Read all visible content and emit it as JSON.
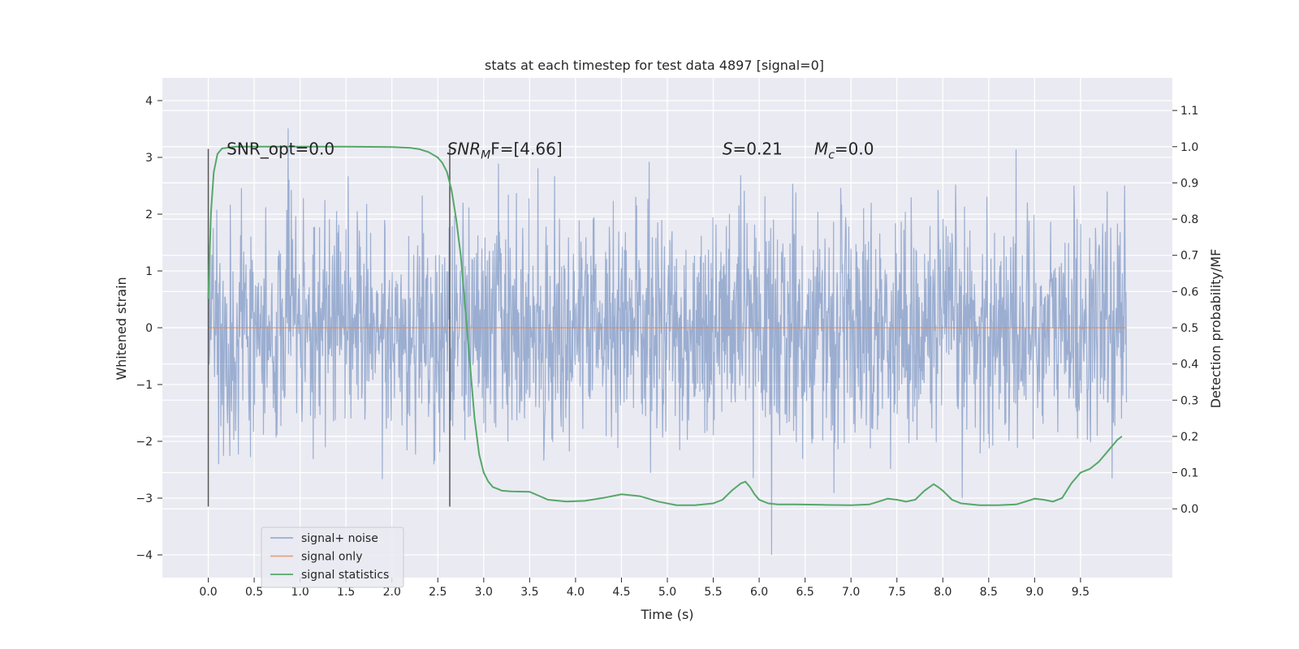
{
  "chart_data": {
    "type": "line",
    "title": "stats at each timestep for test data 4897 [signal=0]",
    "xlabel": "Time (s)",
    "ylabel": "Whitened strain",
    "y2label": "Detection probability/MF",
    "xlim": [
      -0.5,
      10.5
    ],
    "ylim": [
      -4.4,
      4.4
    ],
    "y2lim": [
      -0.19,
      1.19
    ],
    "x_ticks": [
      "0.0",
      "0.5",
      "1.0",
      "1.5",
      "2.0",
      "2.5",
      "3.0",
      "3.5",
      "4.0",
      "4.5",
      "5.0",
      "5.5",
      "6.0",
      "6.5",
      "7.0",
      "7.5",
      "8.0",
      "8.5",
      "9.0",
      "9.5"
    ],
    "y_ticks": [
      "4",
      "3",
      "2",
      "1",
      "0",
      "−1",
      "−2",
      "−3",
      "−4"
    ],
    "y2_ticks": [
      "1.1",
      "1.0",
      "0.9",
      "0.8",
      "0.7",
      "0.6",
      "0.5",
      "0.4",
      "0.3",
      "0.2",
      "0.1",
      "0.0"
    ],
    "grid": true,
    "legend_position": "lower-left",
    "vlines": [
      0.0,
      2.63
    ],
    "vline_range": [
      -3.15,
      3.15
    ],
    "annotations": [
      {
        "prefix": "SNR_opt=0.0",
        "italic": "",
        "sub": "",
        "suffix": "",
        "x": 0.2,
        "y": 3.05
      },
      {
        "prefix": "",
        "italic": "SNR",
        "sub": "M",
        "suffix": "F=[4.66]",
        "x": 2.6,
        "y": 3.05
      },
      {
        "prefix": "",
        "italic": "S",
        "sub": "",
        "suffix": "=0.21",
        "x": 5.6,
        "y": 3.05
      },
      {
        "prefix": "",
        "italic": "M",
        "sub": "c",
        "suffix": "=0.0",
        "x": 6.6,
        "y": 3.05
      }
    ],
    "series": [
      {
        "name": "signal+ noise",
        "color": "#4c72b0",
        "opacity": 0.5,
        "axis": "left",
        "kind": "noise",
        "x_range": [
          0.0,
          10.0
        ],
        "sigma": 1.0,
        "samples": 2048
      },
      {
        "name": "signal only",
        "color": "#dd8452",
        "opacity": 0.7,
        "axis": "left",
        "x": [
          0.0,
          10.0
        ],
        "y": [
          0.0,
          0.0
        ]
      },
      {
        "name": "signal statistics",
        "color": "#55a868",
        "opacity": 1.0,
        "axis": "right",
        "x": [
          0.0,
          0.03,
          0.06,
          0.1,
          0.15,
          0.3,
          0.6,
          1.0,
          1.5,
          2.0,
          2.2,
          2.3,
          2.4,
          2.5,
          2.55,
          2.6,
          2.65,
          2.7,
          2.75,
          2.8,
          2.85,
          2.9,
          2.95,
          3.0,
          3.05,
          3.1,
          3.15,
          3.2,
          3.3,
          3.5,
          3.7,
          3.9,
          4.1,
          4.3,
          4.5,
          4.7,
          4.9,
          5.1,
          5.3,
          5.5,
          5.6,
          5.7,
          5.8,
          5.85,
          5.9,
          5.95,
          6.0,
          6.1,
          6.2,
          6.4,
          6.7,
          7.0,
          7.2,
          7.3,
          7.4,
          7.5,
          7.6,
          7.7,
          7.8,
          7.9,
          7.95,
          8.0,
          8.1,
          8.2,
          8.4,
          8.6,
          8.8,
          8.9,
          9.0,
          9.1,
          9.2,
          9.3,
          9.4,
          9.5,
          9.6,
          9.7,
          9.8,
          9.9,
          9.95
        ],
        "y": [
          0.58,
          0.82,
          0.93,
          0.98,
          0.995,
          1.0,
          1.0,
          1.0,
          1.0,
          0.999,
          0.997,
          0.993,
          0.985,
          0.97,
          0.955,
          0.93,
          0.88,
          0.8,
          0.7,
          0.55,
          0.4,
          0.25,
          0.15,
          0.1,
          0.075,
          0.06,
          0.055,
          0.05,
          0.048,
          0.047,
          0.025,
          0.02,
          0.022,
          0.03,
          0.04,
          0.035,
          0.02,
          0.01,
          0.01,
          0.015,
          0.025,
          0.05,
          0.07,
          0.075,
          0.06,
          0.04,
          0.025,
          0.015,
          0.012,
          0.012,
          0.011,
          0.01,
          0.012,
          0.02,
          0.028,
          0.025,
          0.02,
          0.025,
          0.05,
          0.068,
          0.06,
          0.05,
          0.025,
          0.015,
          0.01,
          0.01,
          0.012,
          0.02,
          0.028,
          0.025,
          0.02,
          0.03,
          0.07,
          0.1,
          0.11,
          0.13,
          0.16,
          0.19,
          0.2
        ]
      }
    ]
  }
}
